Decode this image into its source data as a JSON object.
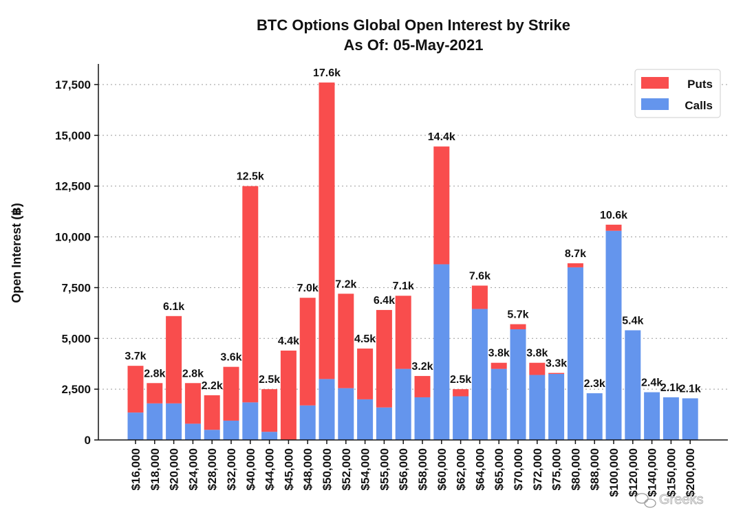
{
  "chart_data": {
    "type": "bar",
    "stacked": true,
    "title": "BTC Options Global Open Interest by Strike",
    "subtitle": "As Of: 05-May-2021",
    "ylabel": "Open Interest (฿)",
    "xlabel": "",
    "ylim": [
      0,
      18500
    ],
    "yticks": [
      0,
      2500,
      5000,
      7500,
      10000,
      12500,
      15000,
      17500
    ],
    "ytick_labels": [
      "0",
      "2,500",
      "5,000",
      "7,500",
      "10,000",
      "12,500",
      "15,000",
      "17,500"
    ],
    "grid": true,
    "legend_position": "top-right",
    "categories": [
      "$16,000",
      "$18,000",
      "$20,000",
      "$24,000",
      "$28,000",
      "$32,000",
      "$40,000",
      "$44,000",
      "$45,000",
      "$48,000",
      "$50,000",
      "$52,000",
      "$54,000",
      "$55,000",
      "$56,000",
      "$58,000",
      "$60,000",
      "$62,000",
      "$64,000",
      "$65,000",
      "$70,000",
      "$72,000",
      "$75,000",
      "$80,000",
      "$88,000",
      "$100,000",
      "$120,000",
      "$140,000",
      "$150,000",
      "$200,000"
    ],
    "series": [
      {
        "name": "Calls",
        "color": "#6495ED",
        "values": [
          1350,
          1800,
          1800,
          800,
          500,
          950,
          1850,
          400,
          20,
          1700,
          3000,
          2550,
          2000,
          1600,
          3500,
          2100,
          8650,
          2150,
          6450,
          3500,
          5450,
          3200,
          3250,
          8500,
          2300,
          10300,
          5400,
          2350,
          2100,
          2050
        ]
      },
      {
        "name": "Puts",
        "color": "#F94D4D",
        "values": [
          2300,
          1000,
          4300,
          2000,
          1700,
          2650,
          10650,
          2100,
          4380,
          5300,
          14600,
          4650,
          2500,
          4800,
          3600,
          1050,
          5800,
          350,
          1150,
          300,
          250,
          600,
          50,
          200,
          0,
          300,
          0,
          0,
          0,
          0
        ]
      }
    ],
    "total_labels": [
      "3.7k",
      "2.8k",
      "6.1k",
      "2.8k",
      "2.2k",
      "3.6k",
      "12.5k",
      "2.5k",
      "4.4k",
      "7.0k",
      "17.6k",
      "7.2k",
      "4.5k",
      "6.4k",
      "7.1k",
      "3.2k",
      "14.4k",
      "2.5k",
      "7.6k",
      "3.8k",
      "5.7k",
      "3.8k",
      "3.3k",
      "8.7k",
      "2.3k",
      "10.6k",
      "5.4k",
      "2.4k",
      "2.1k",
      "2.1k"
    ]
  },
  "watermark": {
    "text": "Greeks",
    "icon": "wechat-icon"
  }
}
